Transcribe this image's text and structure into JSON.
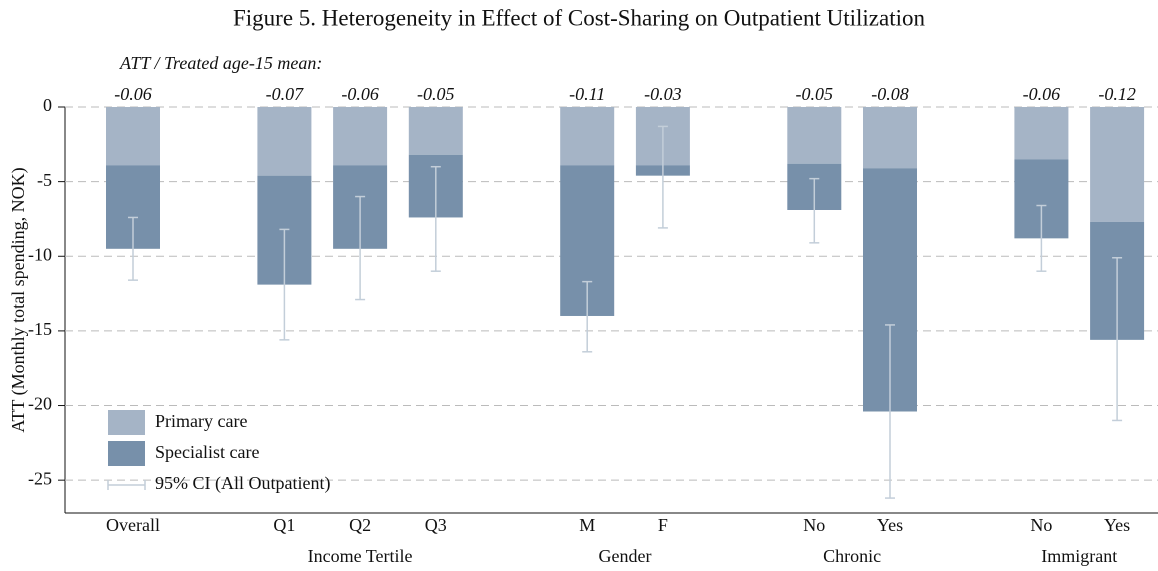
{
  "chart_data": {
    "type": "stacked_bar",
    "title": "Figure 5. Heterogeneity in Effect of Cost-Sharing on Outpatient Utilization",
    "annotation_title": "ATT / Treated age-15 mean:",
    "y_label": "ATT (Monthly total spending, NOK)",
    "categories": [
      "Overall",
      null,
      "Q1",
      "Q2",
      "Q3",
      null,
      "M",
      "F",
      null,
      "No",
      "Yes",
      null,
      "No",
      "Yes"
    ],
    "groups": [
      {
        "label": "Income Tertile",
        "members": [
          2,
          3,
          4
        ]
      },
      {
        "label": "Gender",
        "members": [
          6,
          7
        ]
      },
      {
        "label": "Chronic",
        "members": [
          9,
          10
        ]
      },
      {
        "label": "Immigrant",
        "members": [
          12,
          13
        ]
      }
    ],
    "att_ratio": [
      -0.06,
      null,
      -0.07,
      -0.06,
      -0.05,
      null,
      -0.11,
      -0.03,
      null,
      -0.05,
      -0.08,
      null,
      -0.06,
      -0.12
    ],
    "series": [
      {
        "name": "Primary care",
        "color": "#a5b4c6",
        "values": [
          -3.9,
          null,
          -4.6,
          -3.9,
          -3.2,
          null,
          -3.9,
          -3.9,
          null,
          -3.8,
          -4.1,
          null,
          -3.5,
          -7.7
        ]
      },
      {
        "name": "Specialist care",
        "color": "#7790aa",
        "values": [
          -5.6,
          null,
          -7.3,
          -5.6,
          -4.2,
          null,
          -10.1,
          -0.7,
          null,
          -3.1,
          -16.3,
          null,
          -5.3,
          -7.9
        ]
      }
    ],
    "ci": {
      "name": "95% CI (All Outpatient)",
      "color": "#c3ced9",
      "low": [
        -11.6,
        null,
        -15.6,
        -12.9,
        -11.0,
        null,
        -16.4,
        -8.1,
        null,
        -9.1,
        -26.2,
        null,
        -11.0,
        -21.0
      ],
      "high": [
        -7.4,
        null,
        -8.2,
        -6.0,
        -4.0,
        null,
        -11.7,
        -1.3,
        null,
        -4.8,
        -14.6,
        null,
        -6.6,
        -10.1
      ]
    },
    "ylim": [
      -27.2,
      0
    ],
    "yticks": [
      0,
      -5,
      -10,
      -15,
      -20,
      -25
    ],
    "grid": true,
    "legend": "bottom-left"
  }
}
